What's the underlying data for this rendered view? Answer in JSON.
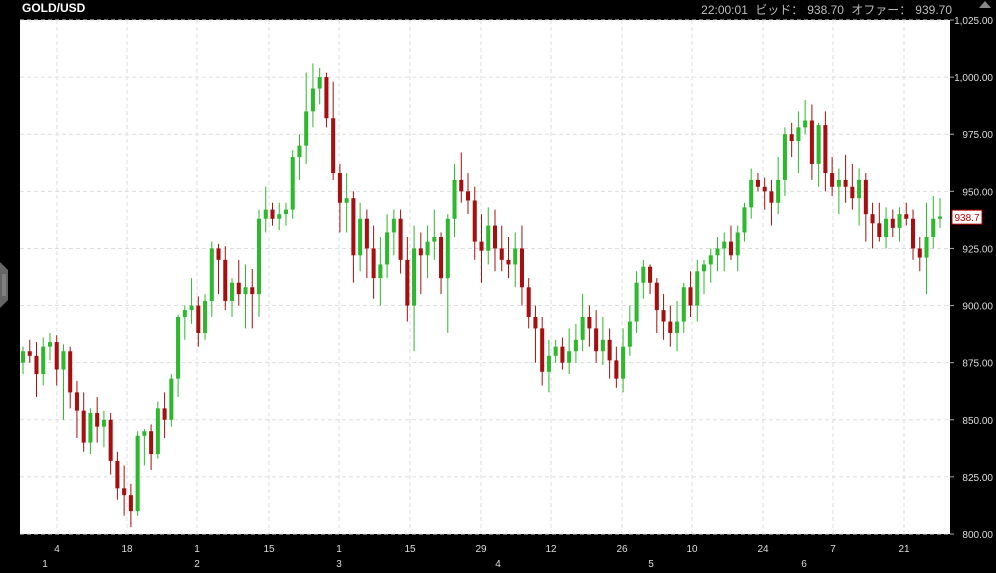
{
  "header": {
    "symbol": "GOLD/USD",
    "time": "22:00:01",
    "bid_label": "ビッド：",
    "bid": "938.70",
    "offer_label": "オファー：",
    "offer": "939.70"
  },
  "colors": {
    "up": "#2db82d",
    "down": "#a50f0f",
    "plot_bg": "#ffffff",
    "grid": "#dddddd",
    "frame": "#000000"
  },
  "icons": {
    "corner": "triangle-up-icon",
    "handle": "scroll-handle-icon"
  },
  "chart_data": {
    "type": "candlestick",
    "title": "GOLD/USD",
    "ylim": [
      800,
      1025
    ],
    "yticks": [
      "1,025.00",
      "1,000.00",
      "975.00",
      "950.00",
      "925.00",
      "900.00",
      "875.00",
      "850.00",
      "825.00",
      "800.00"
    ],
    "x_ticks": [
      "4",
      "18",
      "1",
      "15",
      "1",
      "15",
      "29",
      "12",
      "26",
      "10",
      "24",
      "7",
      "21"
    ],
    "x_month_ticks": [
      "1",
      "2",
      "3",
      "4",
      "5",
      "6"
    ],
    "last_price": 938.7,
    "last_price_label": "938.7",
    "grid": true,
    "candles": [
      [
        875,
        882,
        870,
        880
      ],
      [
        880,
        885,
        875,
        878
      ],
      [
        878,
        884,
        860,
        870
      ],
      [
        870,
        886,
        865,
        882
      ],
      [
        882,
        888,
        876,
        884
      ],
      [
        884,
        887,
        865,
        872
      ],
      [
        872,
        883,
        850,
        880
      ],
      [
        880,
        882,
        855,
        862
      ],
      [
        862,
        867,
        842,
        854
      ],
      [
        854,
        862,
        836,
        840
      ],
      [
        840,
        855,
        835,
        853
      ],
      [
        853,
        860,
        840,
        847
      ],
      [
        847,
        854,
        838,
        850
      ],
      [
        850,
        853,
        826,
        832
      ],
      [
        832,
        836,
        815,
        820
      ],
      [
        820,
        830,
        808,
        817
      ],
      [
        817,
        822,
        803,
        810
      ],
      [
        810,
        845,
        808,
        843
      ],
      [
        843,
        846,
        830,
        845
      ],
      [
        845,
        848,
        828,
        835
      ],
      [
        835,
        858,
        833,
        855
      ],
      [
        855,
        862,
        842,
        850
      ],
      [
        850,
        870,
        847,
        868
      ],
      [
        868,
        896,
        860,
        895
      ],
      [
        895,
        900,
        885,
        898
      ],
      [
        898,
        912,
        892,
        900
      ],
      [
        900,
        904,
        882,
        888
      ],
      [
        888,
        905,
        885,
        902
      ],
      [
        902,
        928,
        895,
        925
      ],
      [
        925,
        927,
        905,
        920
      ],
      [
        920,
        926,
        898,
        902
      ],
      [
        902,
        912,
        895,
        910
      ],
      [
        910,
        920,
        900,
        905
      ],
      [
        905,
        918,
        890,
        908
      ],
      [
        908,
        916,
        890,
        905
      ],
      [
        905,
        942,
        895,
        938
      ],
      [
        938,
        952,
        932,
        942
      ],
      [
        942,
        945,
        935,
        938
      ],
      [
        938,
        945,
        933,
        940
      ],
      [
        940,
        945,
        935,
        942
      ],
      [
        942,
        968,
        938,
        965
      ],
      [
        965,
        975,
        955,
        970
      ],
      [
        970,
        1002,
        962,
        985
      ],
      [
        985,
        1006,
        978,
        995
      ],
      [
        995,
        1004,
        988,
        1000
      ],
      [
        1000,
        1002,
        978,
        982
      ],
      [
        982,
        998,
        955,
        958
      ],
      [
        958,
        962,
        932,
        945
      ],
      [
        945,
        958,
        932,
        947
      ],
      [
        947,
        950,
        910,
        922
      ],
      [
        922,
        945,
        915,
        938
      ],
      [
        938,
        942,
        912,
        925
      ],
      [
        925,
        935,
        903,
        912
      ],
      [
        912,
        930,
        900,
        918
      ],
      [
        918,
        940,
        912,
        932
      ],
      [
        932,
        942,
        922,
        938
      ],
      [
        938,
        942,
        914,
        920
      ],
      [
        920,
        930,
        893,
        900
      ],
      [
        900,
        935,
        880,
        925
      ],
      [
        925,
        932,
        905,
        922
      ],
      [
        922,
        935,
        912,
        928
      ],
      [
        928,
        942,
        920,
        930
      ],
      [
        930,
        932,
        905,
        912
      ],
      [
        912,
        940,
        888,
        938
      ],
      [
        938,
        962,
        930,
        955
      ],
      [
        955,
        967,
        945,
        950
      ],
      [
        950,
        958,
        940,
        946
      ],
      [
        946,
        952,
        920,
        928
      ],
      [
        928,
        940,
        910,
        924
      ],
      [
        924,
        943,
        918,
        935
      ],
      [
        935,
        942,
        915,
        925
      ],
      [
        925,
        935,
        915,
        920
      ],
      [
        920,
        930,
        912,
        918
      ],
      [
        918,
        932,
        908,
        925
      ],
      [
        925,
        935,
        900,
        908
      ],
      [
        908,
        912,
        890,
        895
      ],
      [
        895,
        900,
        875,
        890
      ],
      [
        890,
        895,
        865,
        871
      ],
      [
        871,
        885,
        862,
        878
      ],
      [
        878,
        885,
        875,
        882
      ],
      [
        882,
        886,
        872,
        875
      ],
      [
        875,
        890,
        870,
        880
      ],
      [
        880,
        892,
        875,
        885
      ],
      [
        885,
        905,
        880,
        895
      ],
      [
        895,
        900,
        882,
        890
      ],
      [
        890,
        898,
        875,
        880
      ],
      [
        880,
        895,
        874,
        885
      ],
      [
        885,
        890,
        868,
        876
      ],
      [
        876,
        882,
        864,
        868
      ],
      [
        868,
        890,
        862,
        882
      ],
      [
        882,
        900,
        878,
        893
      ],
      [
        893,
        915,
        888,
        910
      ],
      [
        910,
        920,
        903,
        917
      ],
      [
        917,
        918,
        905,
        910
      ],
      [
        910,
        912,
        888,
        898
      ],
      [
        898,
        905,
        885,
        893
      ],
      [
        893,
        900,
        882,
        888
      ],
      [
        888,
        902,
        880,
        893
      ],
      [
        893,
        910,
        888,
        908
      ],
      [
        908,
        915,
        895,
        900
      ],
      [
        900,
        920,
        893,
        915
      ],
      [
        915,
        920,
        905,
        918
      ],
      [
        918,
        925,
        910,
        922
      ],
      [
        922,
        930,
        915,
        925
      ],
      [
        925,
        932,
        915,
        928
      ],
      [
        928,
        935,
        920,
        922
      ],
      [
        922,
        935,
        915,
        932
      ],
      [
        932,
        945,
        928,
        943
      ],
      [
        943,
        960,
        938,
        955
      ],
      [
        955,
        958,
        950,
        952
      ],
      [
        952,
        956,
        942,
        950
      ],
      [
        950,
        955,
        935,
        945
      ],
      [
        945,
        965,
        940,
        955
      ],
      [
        955,
        978,
        948,
        975
      ],
      [
        975,
        980,
        965,
        972
      ],
      [
        972,
        985,
        958,
        978
      ],
      [
        978,
        990,
        975,
        981
      ],
      [
        981,
        988,
        955,
        962
      ],
      [
        962,
        980,
        952,
        979
      ],
      [
        979,
        985,
        950,
        958
      ],
      [
        958,
        965,
        948,
        952
      ],
      [
        952,
        960,
        940,
        955
      ],
      [
        955,
        966,
        945,
        952
      ],
      [
        952,
        962,
        942,
        947
      ],
      [
        947,
        960,
        935,
        955
      ],
      [
        955,
        958,
        928,
        940
      ],
      [
        940,
        945,
        925,
        936
      ],
      [
        936,
        945,
        928,
        930
      ],
      [
        930,
        943,
        925,
        938
      ],
      [
        938,
        942,
        930,
        934
      ],
      [
        934,
        943,
        928,
        940
      ],
      [
        940,
        945,
        935,
        938
      ],
      [
        938,
        942,
        920,
        925
      ],
      [
        925,
        930,
        915,
        921
      ],
      [
        921,
        945,
        905,
        930
      ],
      [
        930,
        948,
        925,
        938
      ],
      [
        938,
        947,
        934,
        939
      ]
    ]
  }
}
